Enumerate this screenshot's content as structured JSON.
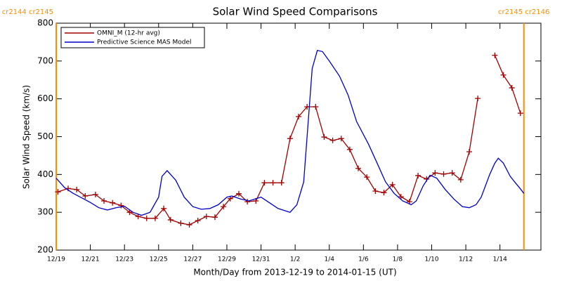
{
  "chart_data": {
    "type": "line",
    "title": "Solar Wind Speed Comparisons",
    "x_label": "Month/Day from 2013-12-19 to 2014-01-15 (UT)",
    "y_label": "Solar Wind Speed (km/s)",
    "xlim": [
      0,
      28.4
    ],
    "ylim": [
      200,
      800
    ],
    "yticks": [
      200,
      300,
      400,
      500,
      600,
      700,
      800
    ],
    "xticks": [
      {
        "value": 0,
        "label": "12/19"
      },
      {
        "value": 2,
        "label": "12/21"
      },
      {
        "value": 4,
        "label": "12/23"
      },
      {
        "value": 6,
        "label": "12/25"
      },
      {
        "value": 8,
        "label": "12/27"
      },
      {
        "value": 10,
        "label": "12/29"
      },
      {
        "value": 12,
        "label": "12/31"
      },
      {
        "value": 14,
        "label": "1/2"
      },
      {
        "value": 16,
        "label": "1/4"
      },
      {
        "value": 18,
        "label": "1/6"
      },
      {
        "value": 20,
        "label": "1/8"
      },
      {
        "value": 22,
        "label": "1/10"
      },
      {
        "value": 24,
        "label": "1/12"
      },
      {
        "value": 26,
        "label": "1/14"
      }
    ],
    "boundaries": [
      {
        "x": 0,
        "label": "cr2144 cr2145",
        "color": "#ff8c00"
      },
      {
        "x": 27.4,
        "label": "cr2145 cr2146",
        "color": "#ff8c00"
      }
    ],
    "series": [
      {
        "name": "OMNI_M (12-hr avg)",
        "color": "#a00000",
        "markers": true,
        "x": [
          0.1,
          0.7,
          1.2,
          1.7,
          2.3,
          2.8,
          3.3,
          3.8,
          4.3,
          4.8,
          5.3,
          5.8,
          6.3,
          6.7,
          7.3,
          7.8,
          8.3,
          8.8,
          9.3,
          9.8,
          10.2,
          10.7,
          11.2,
          11.7,
          12.2,
          12.7,
          13.2,
          13.7,
          14.2,
          14.7,
          15.2,
          15.7,
          16.2,
          16.7,
          17.2,
          17.7,
          18.2,
          18.7,
          19.2,
          19.7,
          20.2,
          20.7,
          21.2,
          21.7,
          22.2,
          22.7,
          23.2,
          23.7,
          24.2,
          24.7,
          25.2,
          25.7,
          26.2,
          26.7,
          27.2
        ],
        "values": [
          354,
          363,
          360,
          343,
          347,
          330,
          325,
          318,
          300,
          289,
          284,
          284,
          310,
          280,
          271,
          267,
          278,
          289,
          287,
          315,
          336,
          349,
          328,
          330,
          378,
          378,
          378,
          495,
          553,
          579,
          579,
          499,
          490,
          495,
          466,
          416,
          393,
          356,
          352,
          373,
          341,
          328,
          397,
          388,
          404,
          401,
          404,
          386,
          460,
          601,
          null,
          715,
          663,
          629,
          562
        ]
      },
      {
        "name": "Predictive Science MAS Model",
        "color": "#0000c8",
        "markers": false,
        "x": [
          0,
          0.5,
          1,
          1.5,
          2,
          2.5,
          3,
          3.5,
          4,
          4.5,
          5,
          5.5,
          6,
          6.2,
          6.5,
          7,
          7.5,
          8,
          8.5,
          9,
          9.5,
          10,
          10.3,
          10.8,
          11.3,
          12,
          12.5,
          13,
          13.7,
          14.1,
          14.5,
          15,
          15.3,
          15.6,
          16,
          16.6,
          17.1,
          17.6,
          18.3,
          18.8,
          19.3,
          19.8,
          20.3,
          20.8,
          21.1,
          21.5,
          21.9,
          22.3,
          22.8,
          23.3,
          23.8,
          24.2,
          24.6,
          24.9,
          25.4,
          25.7,
          25.9,
          26.2,
          26.6,
          26.9,
          27.2,
          27.4
        ],
        "values": [
          390,
          365,
          350,
          338,
          326,
          312,
          306,
          312,
          316,
          300,
          292,
          300,
          340,
          395,
          410,
          385,
          340,
          315,
          308,
          310,
          320,
          340,
          343,
          335,
          330,
          340,
          325,
          310,
          300,
          320,
          380,
          680,
          728,
          725,
          700,
          660,
          610,
          540,
          480,
          430,
          380,
          350,
          330,
          320,
          330,
          370,
          398,
          390,
          360,
          335,
          315,
          312,
          320,
          340,
          400,
          430,
          443,
          430,
          395,
          378,
          362,
          350
        ]
      }
    ]
  }
}
